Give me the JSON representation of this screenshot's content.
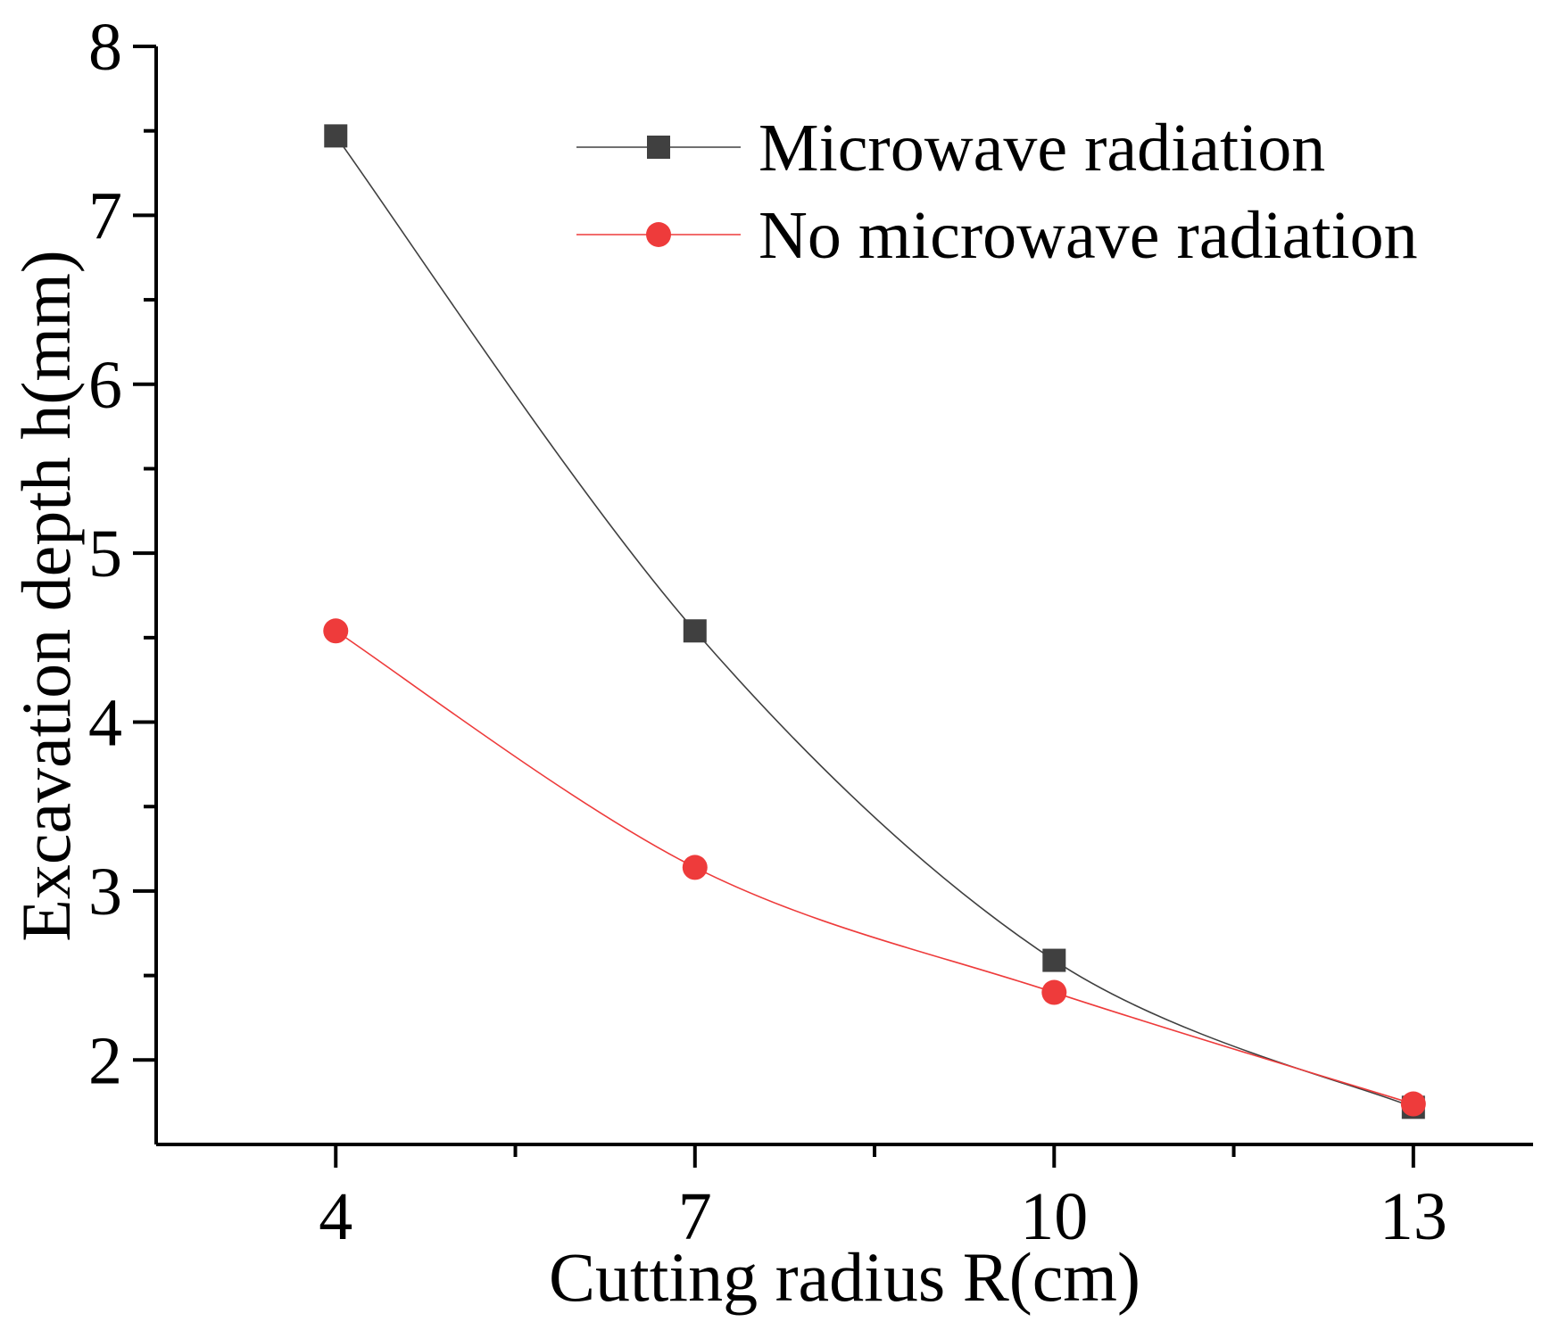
{
  "chart_data": {
    "type": "line",
    "title": "",
    "xlabel": "Cutting radius R(cm)",
    "ylabel": "Excavation depth h(mm)",
    "x": [
      4,
      7,
      10,
      13
    ],
    "xticks": [
      4,
      7,
      10,
      13
    ],
    "xlim": [
      2.5,
      14
    ],
    "yticks": [
      2,
      3,
      4,
      5,
      6,
      7,
      8
    ],
    "ylim": [
      1.5,
      8
    ],
    "grid": false,
    "legend_position": "top-right",
    "series": [
      {
        "name": "Microwave radiation",
        "values": [
          7.47,
          4.54,
          2.59,
          1.72
        ],
        "color": "#404040",
        "marker": "square"
      },
      {
        "name": "No microwave radiation",
        "values": [
          4.54,
          3.14,
          2.4,
          1.74
        ],
        "color": "#ee3b3b",
        "marker": "circle"
      }
    ]
  }
}
